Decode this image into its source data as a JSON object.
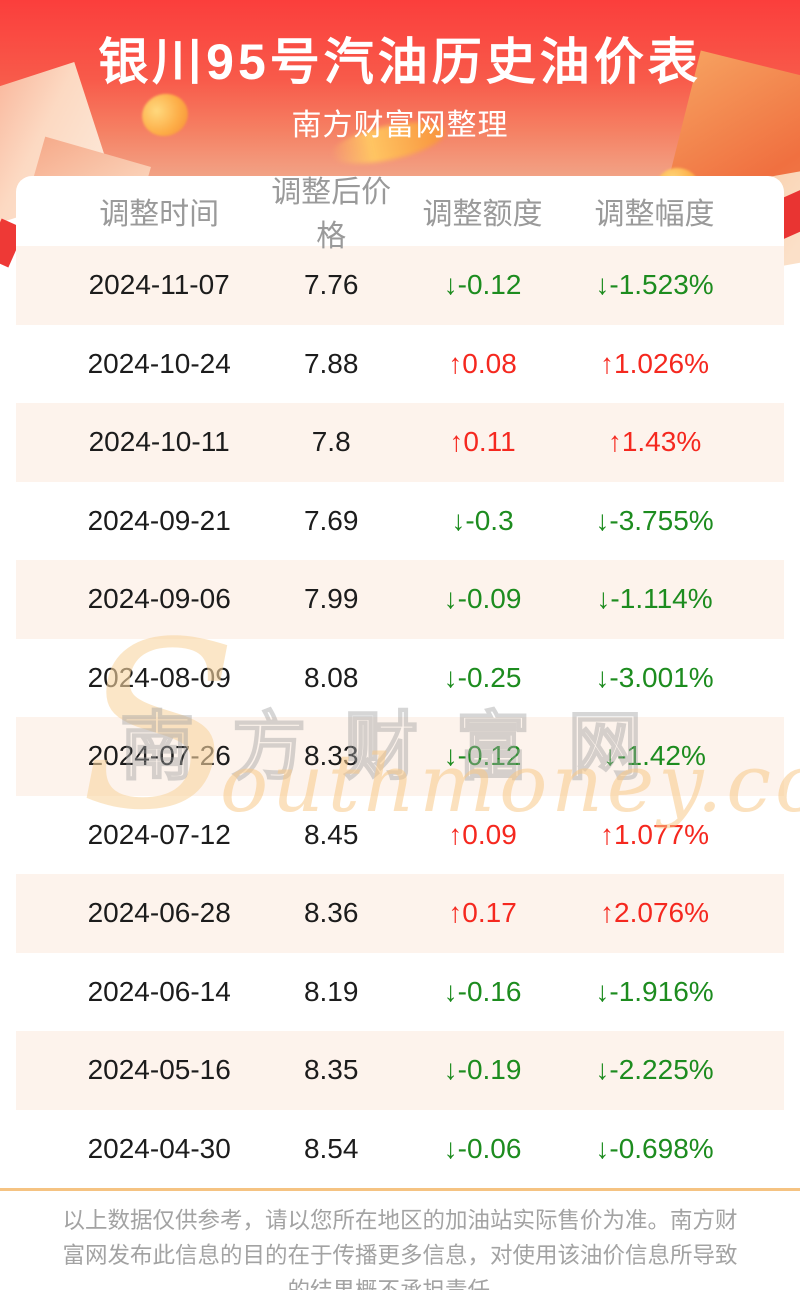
{
  "page": {
    "title": "银川95号汽油历史油价表",
    "subtitle": "南方财富网整理"
  },
  "table": {
    "headers": [
      "调整时间",
      "调整后价格",
      "调整额度",
      "调整幅度"
    ],
    "rows": [
      {
        "date": "2024-11-07",
        "price": "7.76",
        "change": "↓-0.12",
        "pct": "↓-1.523%",
        "dir": "down"
      },
      {
        "date": "2024-10-24",
        "price": "7.88",
        "change": "↑0.08",
        "pct": "↑1.026%",
        "dir": "up"
      },
      {
        "date": "2024-10-11",
        "price": "7.8",
        "change": "↑0.11",
        "pct": "↑1.43%",
        "dir": "up"
      },
      {
        "date": "2024-09-21",
        "price": "7.69",
        "change": "↓-0.3",
        "pct": "↓-3.755%",
        "dir": "down"
      },
      {
        "date": "2024-09-06",
        "price": "7.99",
        "change": "↓-0.09",
        "pct": "↓-1.114%",
        "dir": "down"
      },
      {
        "date": "2024-08-09",
        "price": "8.08",
        "change": "↓-0.25",
        "pct": "↓-3.001%",
        "dir": "down"
      },
      {
        "date": "2024-07-26",
        "price": "8.33",
        "change": "↓-0.12",
        "pct": "↓-1.42%",
        "dir": "down"
      },
      {
        "date": "2024-07-12",
        "price": "8.45",
        "change": "↑0.09",
        "pct": "↑1.077%",
        "dir": "up"
      },
      {
        "date": "2024-06-28",
        "price": "8.36",
        "change": "↑0.17",
        "pct": "↑2.076%",
        "dir": "up"
      },
      {
        "date": "2024-06-14",
        "price": "8.19",
        "change": "↓-0.16",
        "pct": "↓-1.916%",
        "dir": "down"
      },
      {
        "date": "2024-05-16",
        "price": "8.35",
        "change": "↓-0.19",
        "pct": "↓-2.225%",
        "dir": "down"
      },
      {
        "date": "2024-04-30",
        "price": "8.54",
        "change": "↓-0.06",
        "pct": "↓-0.698%",
        "dir": "down"
      }
    ]
  },
  "watermark": {
    "cn": "南方财富网",
    "en_initial": "S",
    "en_rest": "outhmoney.com"
  },
  "footer": {
    "disclaimer": "以上数据仅供参考，请以您所在地区的加油站实际售价为准。南方财富网发布此信息的目的在于传播更多信息，对使用该油价信息所导致的结果概不承担责任。"
  },
  "colors": {
    "up": "#f5281f",
    "down": "#1d8c1f",
    "accent_red": "#fb3e3c",
    "row_alt": "#fdf3ec",
    "divider": "#f5c382"
  }
}
